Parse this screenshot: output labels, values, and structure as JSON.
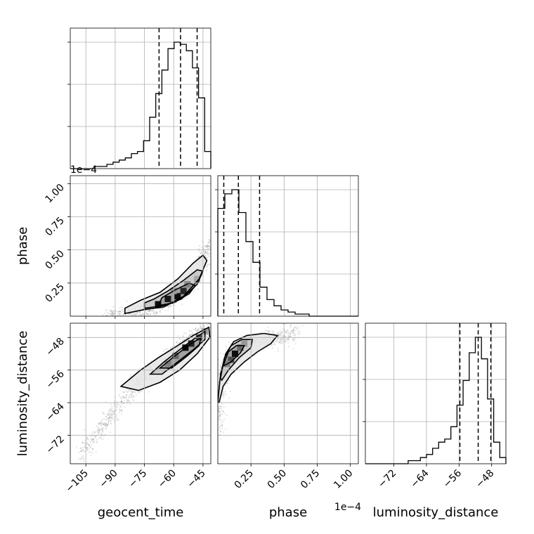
{
  "chart_data": {
    "type": "corner",
    "parameters": [
      {
        "key": "geocent_time",
        "label": "geocent_time",
        "range": [
          -113,
          -41
        ],
        "ticks": [
          -105,
          -90,
          -75,
          -60,
          -45
        ],
        "tick_labels": [
          "−105",
          "−90",
          "−75",
          "−60",
          "−45"
        ],
        "quantiles": [
          -67.5,
          -56.5,
          -48.0
        ],
        "hist_bins": [
          -113,
          -41
        ],
        "hist": [
          0,
          0,
          0,
          0,
          1,
          1,
          2,
          3,
          4,
          5,
          7,
          8,
          13,
          24,
          35,
          46,
          56,
          59,
          58,
          55,
          47,
          33,
          8
        ]
      },
      {
        "key": "phase",
        "label": "phase",
        "offset_text": "1e−4",
        "range": [
          0.0,
          1.06
        ],
        "ticks": [
          0.25,
          0.5,
          0.75,
          1.0
        ],
        "tick_labels": [
          "0.25",
          "0.50",
          "0.75",
          "1.00"
        ],
        "quantiles": [
          0.045,
          0.155,
          0.315
        ],
        "hist_bins": [
          0.0,
          1.06
        ],
        "hist": [
          52,
          59,
          61,
          50,
          36,
          26,
          14,
          8,
          5,
          3,
          2,
          1,
          1,
          0,
          0,
          0,
          0,
          0,
          0,
          0
        ]
      },
      {
        "key": "luminosity_distance",
        "label": "luminosity_distance",
        "range": [
          -79,
          -44.5
        ],
        "ticks": [
          -72,
          -64,
          -56,
          -48
        ],
        "tick_labels": [
          "−72",
          "−64",
          "−56",
          "−48"
        ],
        "quantiles": [
          -55.8,
          -51.3,
          -48.2
        ],
        "hist_bins": [
          -79,
          -44.5
        ],
        "hist": [
          0,
          0,
          0,
          0,
          0,
          0,
          0,
          1,
          1,
          2,
          3,
          5,
          7,
          8,
          12,
          19,
          27,
          36,
          41,
          34,
          21,
          7,
          2
        ]
      }
    ],
    "pairs": [
      {
        "x": "geocent_time",
        "y": "phase",
        "scatter_trend": [
          [
            -95,
            0.0
          ],
          [
            -85,
            0.01
          ],
          [
            -75,
            0.04
          ],
          [
            -68,
            0.08
          ],
          [
            -62,
            0.12
          ],
          [
            -55,
            0.2
          ],
          [
            -50,
            0.3
          ],
          [
            -45,
            0.42
          ],
          [
            -42,
            0.55
          ]
        ],
        "contours": [
          [
            [
              -85,
              0.02
            ],
            [
              -75,
              0.05
            ],
            [
              -65,
              0.07
            ],
            [
              -55,
              0.15
            ],
            [
              -47,
              0.28
            ],
            [
              -43,
              0.42
            ],
            [
              -45,
              0.46
            ],
            [
              -50,
              0.4
            ],
            [
              -58,
              0.28
            ],
            [
              -67,
              0.18
            ],
            [
              -77,
              0.12
            ],
            [
              -85,
              0.06
            ]
          ],
          [
            [
              -75,
              0.06
            ],
            [
              -65,
              0.08
            ],
            [
              -56,
              0.13
            ],
            [
              -48,
              0.24
            ],
            [
              -45,
              0.34
            ],
            [
              -48,
              0.35
            ],
            [
              -55,
              0.27
            ],
            [
              -63,
              0.19
            ],
            [
              -70,
              0.13
            ],
            [
              -75,
              0.1
            ]
          ],
          [
            [
              -68,
              0.08
            ],
            [
              -60,
              0.1
            ],
            [
              -52,
              0.17
            ],
            [
              -49,
              0.23
            ],
            [
              -52,
              0.25
            ],
            [
              -59,
              0.2
            ],
            [
              -66,
              0.14
            ]
          ]
        ],
        "cells": [
          [
            -68,
            0.09,
            0.95
          ],
          [
            -63,
            0.13,
            0.9
          ],
          [
            -58,
            0.15,
            0.95
          ],
          [
            -55,
            0.19,
            0.85
          ],
          [
            -60,
            0.19,
            0.4
          ],
          [
            -53,
            0.24,
            0.5
          ],
          [
            -48,
            0.28,
            0.35
          ]
        ]
      },
      {
        "x": "geocent_time",
        "y": "luminosity_distance",
        "scatter_trend": [
          [
            -108,
            -77
          ],
          [
            -98,
            -71
          ],
          [
            -88,
            -65
          ],
          [
            -78,
            -59
          ],
          [
            -68,
            -55
          ],
          [
            -58,
            -51
          ],
          [
            -50,
            -48
          ],
          [
            -42,
            -46
          ]
        ],
        "contours": [
          [
            [
              -87,
              -60
            ],
            [
              -77,
              -56
            ],
            [
              -68,
              -53
            ],
            [
              -58,
              -50
            ],
            [
              -50,
              -47.5
            ],
            [
              -42,
              -45.5
            ],
            [
              -41.5,
              -48
            ],
            [
              -48,
              -52
            ],
            [
              -57,
              -56
            ],
            [
              -67,
              -59
            ],
            [
              -78,
              -61
            ]
          ],
          [
            [
              -72,
              -57
            ],
            [
              -65,
              -54
            ],
            [
              -57,
              -51
            ],
            [
              -50,
              -48.5
            ],
            [
              -44,
              -46.5
            ],
            [
              -44,
              -48.5
            ],
            [
              -50,
              -51
            ],
            [
              -58,
              -54
            ],
            [
              -66,
              -57
            ]
          ],
          [
            [
              -67,
              -55.5
            ],
            [
              -58,
              -52
            ],
            [
              -51,
              -49.5
            ],
            [
              -46,
              -48
            ],
            [
              -47,
              -50
            ],
            [
              -53,
              -52.5
            ],
            [
              -61,
              -55.5
            ]
          ]
        ],
        "cells": [
          [
            -54,
            -50.5,
            0.95
          ],
          [
            -51,
            -49.5,
            0.85
          ],
          [
            -47,
            -48,
            0.7
          ],
          [
            -59,
            -52.5,
            0.6
          ],
          [
            -63,
            -54.5,
            0.5
          ],
          [
            -44,
            -46.5,
            0.4
          ]
        ]
      },
      {
        "x": "phase",
        "y": "luminosity_distance",
        "scatter_trend": [
          [
            0.0,
            -72
          ],
          [
            0.01,
            -62
          ],
          [
            0.05,
            -56
          ],
          [
            0.12,
            -52
          ],
          [
            0.2,
            -50
          ],
          [
            0.3,
            -49
          ],
          [
            0.45,
            -48
          ],
          [
            0.6,
            -47
          ]
        ],
        "contours": [
          [
            [
              0.0,
              -64
            ],
            [
              0.02,
              -57
            ],
            [
              0.06,
              -52
            ],
            [
              0.12,
              -49
            ],
            [
              0.22,
              -47.5
            ],
            [
              0.35,
              -47
            ],
            [
              0.45,
              -47.5
            ],
            [
              0.4,
              -49.5
            ],
            [
              0.3,
              -51.5
            ],
            [
              0.2,
              -54
            ],
            [
              0.1,
              -57
            ],
            [
              0.04,
              -60
            ],
            [
              0.01,
              -64
            ]
          ],
          [
            [
              0.02,
              -58
            ],
            [
              0.05,
              -53
            ],
            [
              0.1,
              -50
            ],
            [
              0.18,
              -48.5
            ],
            [
              0.26,
              -48.5
            ],
            [
              0.25,
              -50.5
            ],
            [
              0.16,
              -53
            ],
            [
              0.08,
              -56
            ],
            [
              0.03,
              -58.5
            ]
          ],
          [
            [
              0.04,
              -55
            ],
            [
              0.08,
              -51.5
            ],
            [
              0.14,
              -50
            ],
            [
              0.2,
              -50
            ],
            [
              0.17,
              -51.8
            ],
            [
              0.1,
              -54
            ]
          ]
        ],
        "cells": [
          [
            0.13,
            -52,
            0.95
          ],
          [
            0.1,
            -53.5,
            0.7
          ],
          [
            0.17,
            -50.5,
            0.6
          ],
          [
            0.07,
            -54.5,
            0.5
          ],
          [
            0.2,
            -49.5,
            0.4
          ]
        ]
      }
    ]
  }
}
